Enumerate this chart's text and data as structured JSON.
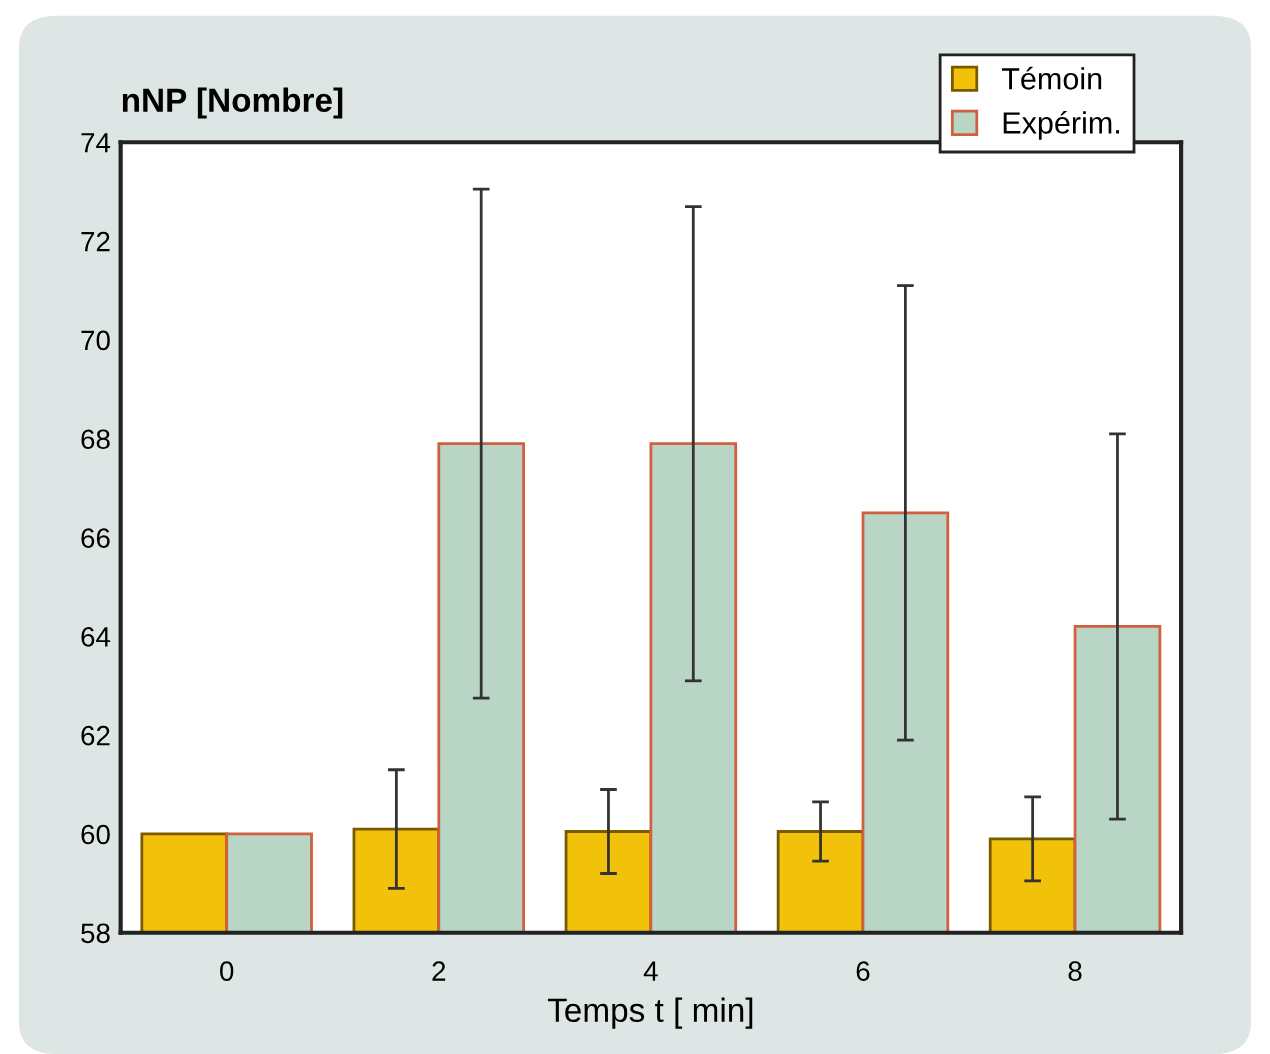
{
  "chart_data": {
    "type": "bar",
    "ylabel": "nNP [Nombre]",
    "xlabel": "Temps t [ min]",
    "categories": [
      "0",
      "2",
      "4",
      "6",
      "8"
    ],
    "series": [
      {
        "name": "Témoin",
        "color": "#f2c10a",
        "values": [
          60,
          60.1,
          60.05,
          60.05,
          59.9
        ],
        "errors": [
          null,
          1.2,
          0.85,
          0.6,
          0.85
        ]
      },
      {
        "name": "Expérim.",
        "color": "#b9d5c5",
        "values": [
          60,
          67.9,
          67.9,
          66.5,
          64.2
        ],
        "errors": [
          null,
          5.15,
          4.8,
          4.6,
          3.9
        ]
      }
    ],
    "ylim": [
      58,
      74
    ],
    "yticks": [
      58,
      60,
      62,
      64,
      66,
      68,
      70,
      72,
      74
    ],
    "grid": false,
    "legend": "top right"
  }
}
